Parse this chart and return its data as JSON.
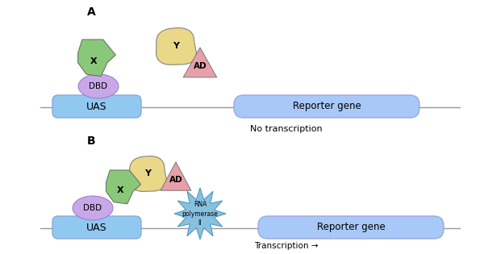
{
  "fig_width": 6.0,
  "fig_height": 3.15,
  "dpi": 100,
  "bg_color": "#ffffff",
  "panel_A_label": "A",
  "panel_B_label": "B",
  "no_transcription_text": "No transcription",
  "transcription_text": "Transcription →",
  "UAS_text": "UAS",
  "reporter_text": "Reporter gene",
  "X_text": "X",
  "Y_text": "Y",
  "AD_text": "AD",
  "DBD_text": "DBD",
  "RNA_pol_text": "RNA\npolymerase\nII",
  "color_UAS": "#90c8f0",
  "color_reporter": "#a8c8f8",
  "color_X": "#88c878",
  "color_Y": "#e8d888",
  "color_AD": "#e8a0a8",
  "color_DBD": "#c8a8e8",
  "color_RNA": "#88c0e0",
  "color_line": "#999999"
}
